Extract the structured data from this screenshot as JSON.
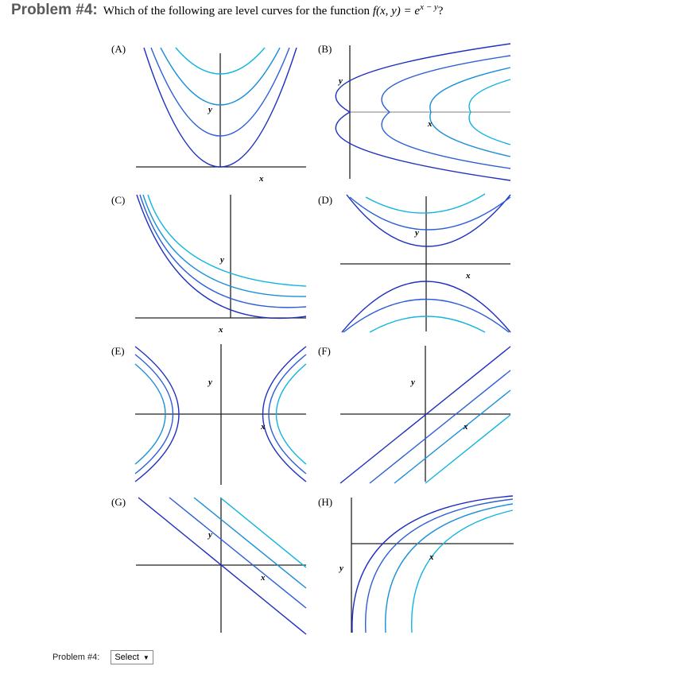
{
  "header": {
    "problem_label": "Problem #4:",
    "question_text": "Which of the following are level curves for the function",
    "function_lhs": "f(x, y) = e",
    "function_exponent": "x − y",
    "question_mark": "?"
  },
  "panels": [
    {
      "label": "(A)",
      "x_label": "x",
      "y_label": "y"
    },
    {
      "label": "(B)",
      "x_label": "x",
      "y_label": "y"
    },
    {
      "label": "(C)",
      "x_label": "x",
      "y_label": "y"
    },
    {
      "label": "(D)",
      "x_label": "x",
      "y_label": "y"
    },
    {
      "label": "(E)",
      "x_label": "x",
      "y_label": "y"
    },
    {
      "label": "(F)",
      "x_label": "x",
      "y_label": "y"
    },
    {
      "label": "(G)",
      "x_label": "x",
      "y_label": "y"
    },
    {
      "label": "(H)",
      "x_label": "x",
      "y_label": "y"
    }
  ],
  "curve_colors": [
    "#1f2fbf",
    "#2c5fd6",
    "#1b8fd8",
    "#12b4e0"
  ],
  "footer": {
    "label": "Problem #4:",
    "select_value": "Select",
    "caret_icon": "triangle-down-icon"
  }
}
